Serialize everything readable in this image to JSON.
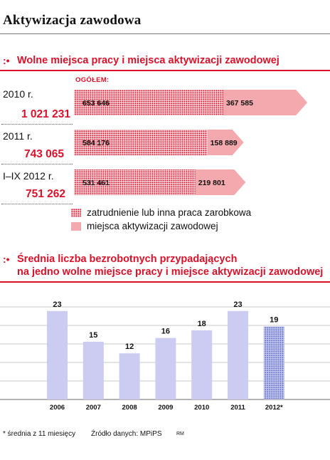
{
  "page_title": "Aktywizacja zawodowa",
  "section1": {
    "marker": ":•",
    "title": "Wolne miejsca pracy i miejsca aktywizacji zawodowej",
    "total_label": "OGÓŁEM:"
  },
  "section2": {
    "marker": ":•",
    "title_line1": "Średnia liczba bezrobotnych przypadających",
    "title_line2": "na jedno wolne miejsce pracy i miejsce aktywizacji zawodowej"
  },
  "chart_data": [
    {
      "type": "bar",
      "orientation": "horizontal-stacked",
      "title": "Wolne miejsca pracy i miejsca aktywizacji zawodowej",
      "categories": [
        "2010 r.",
        "2011 r.",
        "I–IX 2012 r."
      ],
      "totals": [
        "1 021 231",
        "743 065",
        "751 262"
      ],
      "total_values": [
        1021231,
        743065,
        751262
      ],
      "series": [
        {
          "name": "zatrudnienie lub inna praca zarobkowa",
          "values": [
            653646,
            584176,
            531461
          ],
          "labels": [
            "653 646",
            "584 176",
            "531 461"
          ],
          "color": "#d9122a",
          "pattern": "dots"
        },
        {
          "name": "miejsca aktywizacji zawodowej",
          "values": [
            367585,
            158889,
            219801
          ],
          "labels": [
            "367 585",
            "158 889",
            "219 801"
          ],
          "color": "#f3a9ae",
          "pattern": "solid"
        }
      ],
      "xlim": [
        0,
        1050000
      ],
      "legend": "bottom"
    },
    {
      "type": "bar",
      "title": "Średnia liczba bezrobotnych przypadających na jedno wolne miejsce pracy i miejsce aktywizacji zawodowej",
      "categories": [
        "2006",
        "2007",
        "2008",
        "2009",
        "2010",
        "2011",
        "2012*"
      ],
      "values": [
        23,
        15,
        12,
        16,
        18,
        23,
        19
      ],
      "ylim": [
        0,
        25
      ],
      "grid": true,
      "bar_color": "#ccccf2",
      "highlight": {
        "index": 6,
        "pattern": "dots",
        "color": "#5a6fc4"
      }
    }
  ],
  "footnote": "* średnia z 11 miesięcy",
  "source": "Źródło danych: MPiPS",
  "author": "RM"
}
